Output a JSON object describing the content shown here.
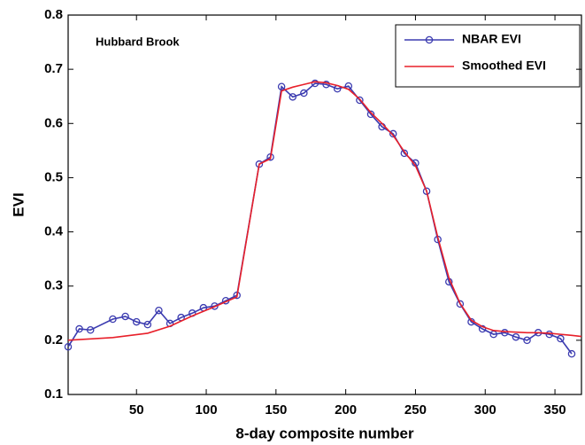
{
  "chart_data": {
    "type": "line",
    "annotation": "Hubbard Brook",
    "x_label": "8-day composite number",
    "y_label": "EVI",
    "xlim": [
      1,
      369
    ],
    "ylim": [
      0.1,
      0.8
    ],
    "xticks": [
      50,
      100,
      150,
      200,
      250,
      300,
      350
    ],
    "yticks": [
      0.1,
      0.2,
      0.3,
      0.4,
      0.5,
      0.6,
      0.7,
      0.8
    ],
    "legend": "upper right",
    "series": [
      {
        "name": "NBAR EVI",
        "color": "#3b3bb0",
        "marker": "circle",
        "x": [
          1,
          9,
          17,
          33,
          42,
          50,
          58,
          66,
          74,
          82,
          90,
          98,
          106,
          114,
          122,
          138,
          146,
          154,
          162,
          170,
          178,
          186,
          194,
          202,
          210,
          218,
          226,
          234,
          242,
          250,
          258,
          266,
          274,
          282,
          290,
          298,
          306,
          314,
          322,
          330,
          338,
          346,
          354,
          362
        ],
        "values": [
          0.188,
          0.221,
          0.219,
          0.239,
          0.244,
          0.234,
          0.229,
          0.255,
          0.231,
          0.242,
          0.25,
          0.26,
          0.263,
          0.273,
          0.283,
          0.525,
          0.538,
          0.668,
          0.649,
          0.656,
          0.674,
          0.672,
          0.664,
          0.669,
          0.643,
          0.617,
          0.594,
          0.581,
          0.545,
          0.527,
          0.475,
          0.386,
          0.308,
          0.267,
          0.234,
          0.221,
          0.211,
          0.214,
          0.206,
          0.2,
          0.214,
          0.211,
          0.203,
          0.175
        ]
      },
      {
        "name": "Smoothed EVI",
        "color": "#e8202a",
        "x": [
          1,
          33,
          58,
          74,
          90,
          106,
          122,
          138,
          146,
          154,
          162,
          170,
          178,
          186,
          194,
          202,
          210,
          218,
          226,
          234,
          242,
          250,
          258,
          266,
          274,
          282,
          290,
          298,
          306,
          314,
          322,
          330,
          338,
          346,
          354,
          362,
          369
        ],
        "values": [
          0.2,
          0.205,
          0.213,
          0.226,
          0.245,
          0.262,
          0.28,
          0.525,
          0.535,
          0.66,
          0.667,
          0.672,
          0.677,
          0.675,
          0.67,
          0.663,
          0.645,
          0.62,
          0.6,
          0.578,
          0.548,
          0.522,
          0.475,
          0.39,
          0.315,
          0.268,
          0.237,
          0.225,
          0.218,
          0.216,
          0.215,
          0.214,
          0.214,
          0.213,
          0.211,
          0.209,
          0.207
        ]
      }
    ]
  }
}
